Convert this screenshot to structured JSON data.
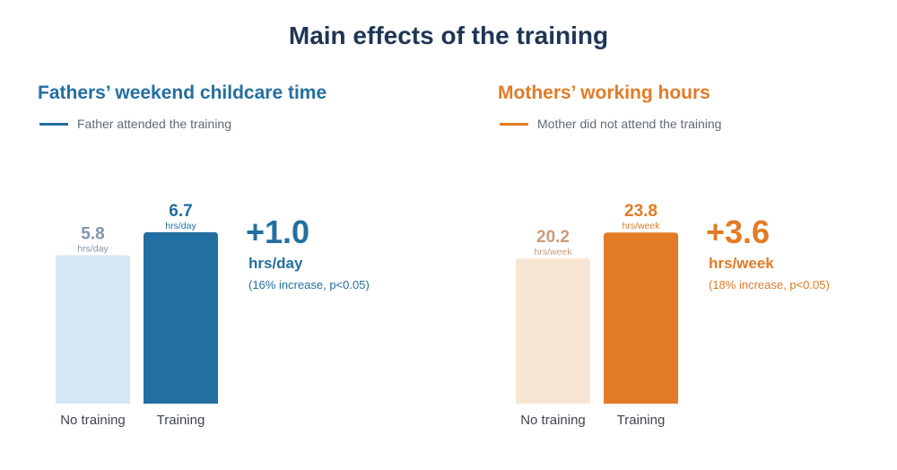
{
  "title": "Main effects of the training",
  "chart_data": [
    {
      "type": "bar",
      "title": "Fathers’ weekend childcare time",
      "legend": "Father attended the training",
      "categories": [
        "No training",
        "Training"
      ],
      "values": [
        5.8,
        6.7
      ],
      "value_labels": [
        "5.8",
        "6.7"
      ],
      "unit": "hrs/day",
      "effect": {
        "value": "+1.0",
        "unit": "hrs/day",
        "note": "(16% increase, p<0.05)"
      },
      "colors": {
        "accent": "#236fa1",
        "light": "#d6e6f2",
        "muted": "#7f96ab"
      },
      "ylim": [
        0,
        7.5
      ],
      "grid": false
    },
    {
      "type": "bar",
      "title": "Mothers’ working hours",
      "legend": "Mother did not attend the training",
      "categories": [
        "No training",
        "Training"
      ],
      "values": [
        20.2,
        23.8
      ],
      "value_labels": [
        "20.2",
        "23.8"
      ],
      "unit": "hrs/week",
      "effect": {
        "value": "+3.6",
        "unit": "hrs/week",
        "note": "(18% increase, p<0.05)"
      },
      "colors": {
        "accent": "#e27b25",
        "light": "#f9e5d3",
        "muted": "#c99c7a"
      },
      "ylim": [
        0,
        26.7
      ],
      "grid": false
    }
  ]
}
